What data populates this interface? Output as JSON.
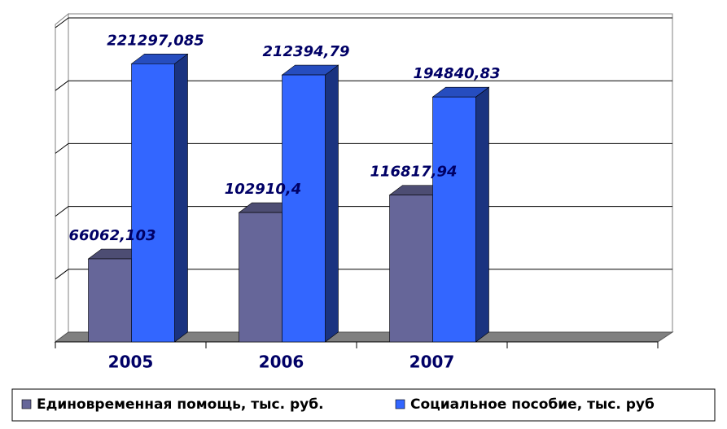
{
  "chart_data": {
    "type": "bar3d",
    "categories": [
      "2005",
      "2006",
      "2007",
      null
    ],
    "series": [
      {
        "name": "Единовременная помощь, тыс. руб.",
        "color": "#666699",
        "values": [
          66062.103,
          102910.4,
          116817.94,
          null
        ],
        "value_labels": [
          "66062,103",
          "102910,4",
          "116817,94",
          null
        ]
      },
      {
        "name": "Социальное пособие, тыс. руб",
        "color": "#3366ff",
        "values": [
          221297.085,
          212394.79,
          194840.83,
          null
        ],
        "value_labels": [
          "221297,085",
          "212394,79",
          "194840,83",
          null
        ]
      }
    ],
    "ylim": [
      0,
      250000
    ],
    "yticks": [
      0,
      50000,
      100000,
      150000,
      200000,
      250000
    ],
    "grid": true,
    "legend": "bottom"
  }
}
